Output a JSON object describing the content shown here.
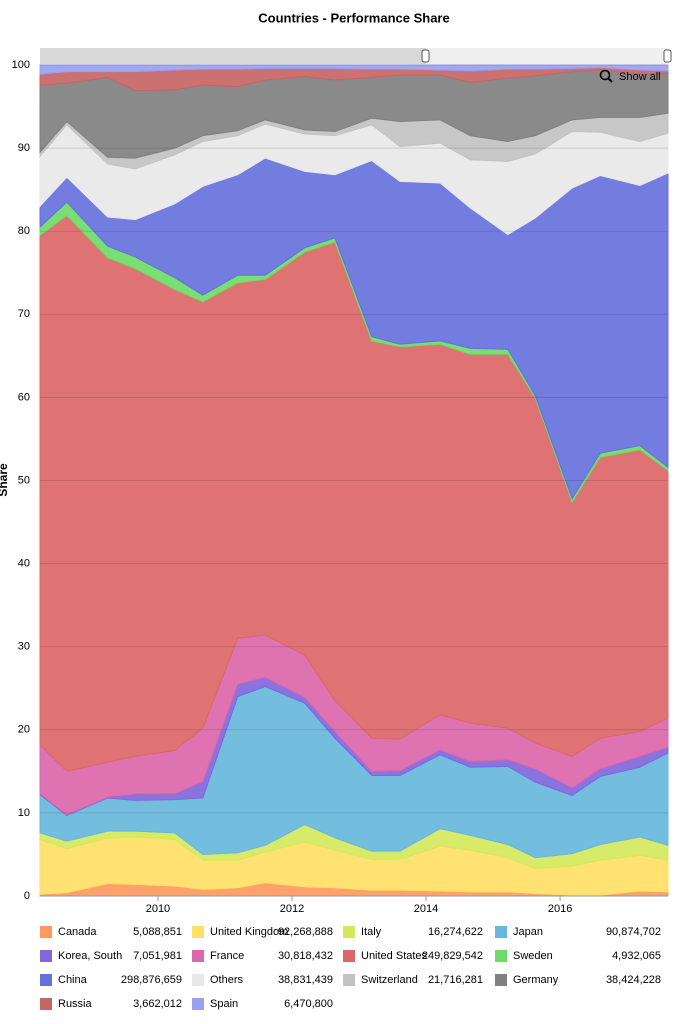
{
  "chart_data": {
    "type": "area",
    "stacked": true,
    "title": "Countries - Performance Share",
    "y_label": "Share",
    "button": "Show all",
    "x": [
      2008.24,
      2008.64,
      2009.25,
      2009.66,
      2010.25,
      2010.67,
      2011.19,
      2011.6,
      2012.19,
      2012.64,
      2013.19,
      2013.61,
      2014.21,
      2014.66,
      2015.22,
      2015.63,
      2016.18,
      2016.6,
      2017.19,
      2017.61
    ],
    "xlim": [
      2008.24,
      2017.61
    ],
    "xticks": [
      2010,
      2012,
      2014,
      2016
    ],
    "ylim": [
      0,
      100
    ],
    "yticks": [
      0,
      10,
      20,
      30,
      40,
      50,
      60,
      70,
      80,
      90,
      100
    ],
    "grid": true,
    "legend": "bottom",
    "series": [
      {
        "name": "Canada",
        "total": "5,088,851",
        "color": "#ff9a5c",
        "values": [
          0.2,
          0.4,
          1.5,
          1.4,
          1.2,
          0.8,
          1.0,
          1.6,
          1.1,
          1.0,
          0.7,
          0.7,
          0.6,
          0.5,
          0.5,
          0.3,
          0.1,
          0.1,
          0.6,
          0.5
        ]
      },
      {
        "name": "United Kingdom",
        "total": "92,268,888",
        "color": "#ffe066",
        "values": [
          6.6,
          5.3,
          5.5,
          5.7,
          5.6,
          3.5,
          3.3,
          3.7,
          5.4,
          4.5,
          3.7,
          3.7,
          5.4,
          5.0,
          4.1,
          3.0,
          3.5,
          4.2,
          4.3,
          3.8
        ]
      },
      {
        "name": "Italy",
        "total": "16,274,622",
        "color": "#d4e85c",
        "values": [
          0.8,
          0.9,
          0.8,
          0.7,
          0.8,
          0.7,
          0.9,
          0.8,
          2.1,
          1.5,
          1.0,
          1.0,
          2.1,
          1.8,
          1.6,
          1.3,
          1.5,
          1.9,
          2.2,
          1.8
        ]
      },
      {
        "name": "Japan",
        "total": "90,874,702",
        "color": "#67b7dc",
        "values": [
          4.6,
          3.1,
          4.0,
          3.7,
          4.0,
          6.8,
          18.8,
          19.1,
          14.6,
          12.0,
          9.1,
          9.1,
          8.9,
          8.2,
          9.4,
          9.1,
          7.0,
          8.2,
          8.4,
          11.1
        ]
      },
      {
        "name": "Korea, South",
        "total": "7,051,981",
        "color": "#8067dc",
        "values": [
          0.1,
          0.1,
          0.1,
          0.8,
          0.7,
          2.0,
          1.5,
          1.1,
          0.7,
          0.8,
          0.5,
          0.6,
          0.6,
          0.7,
          0.8,
          1.6,
          0.9,
          0.9,
          1.3,
          0.7
        ]
      },
      {
        "name": "France",
        "total": "30,818,432",
        "color": "#dc67ab",
        "values": [
          5.9,
          5.2,
          4.2,
          4.5,
          5.2,
          6.4,
          5.5,
          5.1,
          5.1,
          3.7,
          4.0,
          3.8,
          4.2,
          4.6,
          3.8,
          3.1,
          3.8,
          3.7,
          3.0,
          3.5
        ]
      },
      {
        "name": "United States",
        "total": "249,829,542",
        "color": "#dc6767",
        "values": [
          61.3,
          66.9,
          60.7,
          58.7,
          55.5,
          51.3,
          42.8,
          42.8,
          48.5,
          55.2,
          47.8,
          47.2,
          44.6,
          44.4,
          45.0,
          41.5,
          30.6,
          33.8,
          33.9,
          29.8
        ]
      },
      {
        "name": "Sweden",
        "total": "4,932,065",
        "color": "#6ddc67",
        "values": [
          1.0,
          1.6,
          1.4,
          1.4,
          1.4,
          0.8,
          0.9,
          0.5,
          0.5,
          0.5,
          0.5,
          0.3,
          0.4,
          0.7,
          0.6,
          0.3,
          0.4,
          0.5,
          0.5,
          0.4
        ]
      },
      {
        "name": "China",
        "total": "298,876,659",
        "color": "#6771dc",
        "values": [
          2.5,
          3.0,
          3.5,
          4.5,
          8.9,
          13.1,
          12.1,
          14.1,
          9.2,
          7.6,
          21.2,
          19.6,
          19.0,
          16.9,
          13.8,
          21.4,
          37.4,
          33.4,
          31.3,
          35.4
        ]
      },
      {
        "name": "Others",
        "total": "38,831,439",
        "color": "#e8e8e8",
        "values": [
          6.0,
          6.3,
          6.4,
          6.1,
          5.9,
          5.4,
          4.7,
          4.1,
          4.5,
          4.7,
          4.3,
          4.2,
          4.8,
          5.8,
          8.8,
          7.7,
          6.8,
          5.2,
          5.3,
          4.8
        ]
      },
      {
        "name": "Switzerland",
        "total": "21,716,281",
        "color": "#c2c2c2",
        "values": [
          0.5,
          0.4,
          0.8,
          1.3,
          0.8,
          0.7,
          0.6,
          0.5,
          0.5,
          0.5,
          0.8,
          3.0,
          2.8,
          2.9,
          2.4,
          2.2,
          1.4,
          1.8,
          2.9,
          2.4
        ]
      },
      {
        "name": "Germany",
        "total": "38,424,228",
        "color": "#808080",
        "values": [
          8.1,
          4.6,
          9.6,
          8.1,
          7.0,
          6.1,
          5.3,
          4.8,
          6.4,
          6.2,
          4.9,
          5.6,
          5.4,
          6.4,
          7.6,
          7.2,
          5.8,
          5.7,
          5.2,
          4.8
        ]
      },
      {
        "name": "Russia",
        "total": "3,662,012",
        "color": "#c76565",
        "values": [
          1.3,
          1.4,
          0.7,
          2.3,
          2.4,
          1.9,
          2.1,
          1.4,
          1.0,
          1.4,
          1.0,
          0.7,
          0.6,
          1.4,
          1.1,
          0.8,
          0.4,
          0.3,
          0.5,
          0.3
        ]
      },
      {
        "name": "Spain",
        "total": "6,470,800",
        "color": "#9aa0f0",
        "values": [
          1.1,
          0.8,
          0.8,
          0.8,
          0.6,
          0.5,
          0.5,
          0.4,
          0.4,
          0.4,
          0.5,
          0.5,
          0.6,
          0.7,
          0.5,
          0.5,
          0.4,
          0.3,
          0.6,
          0.7
        ]
      }
    ]
  }
}
